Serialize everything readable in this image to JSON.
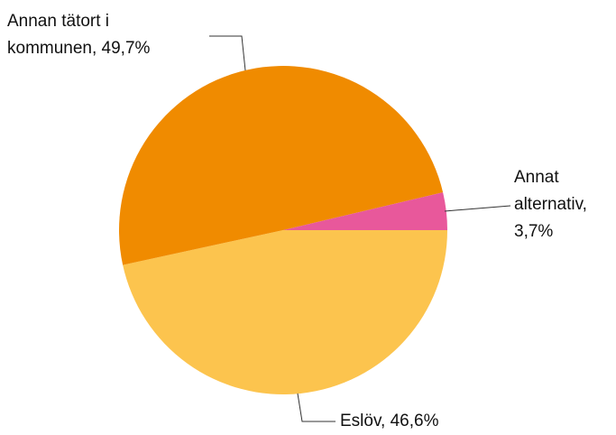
{
  "chart_data": {
    "type": "pie",
    "labels": [
      [
        "Eslöv, 46,6%"
      ],
      [
        "Annan tätort i",
        "kommunen, 49,7%"
      ],
      [
        "Annat",
        "alternativ,",
        "3,7%"
      ]
    ],
    "values": [
      46.6,
      49.7,
      3.7
    ],
    "colors": [
      "#fcc44e",
      "#f08b00",
      "#e8589b"
    ]
  }
}
